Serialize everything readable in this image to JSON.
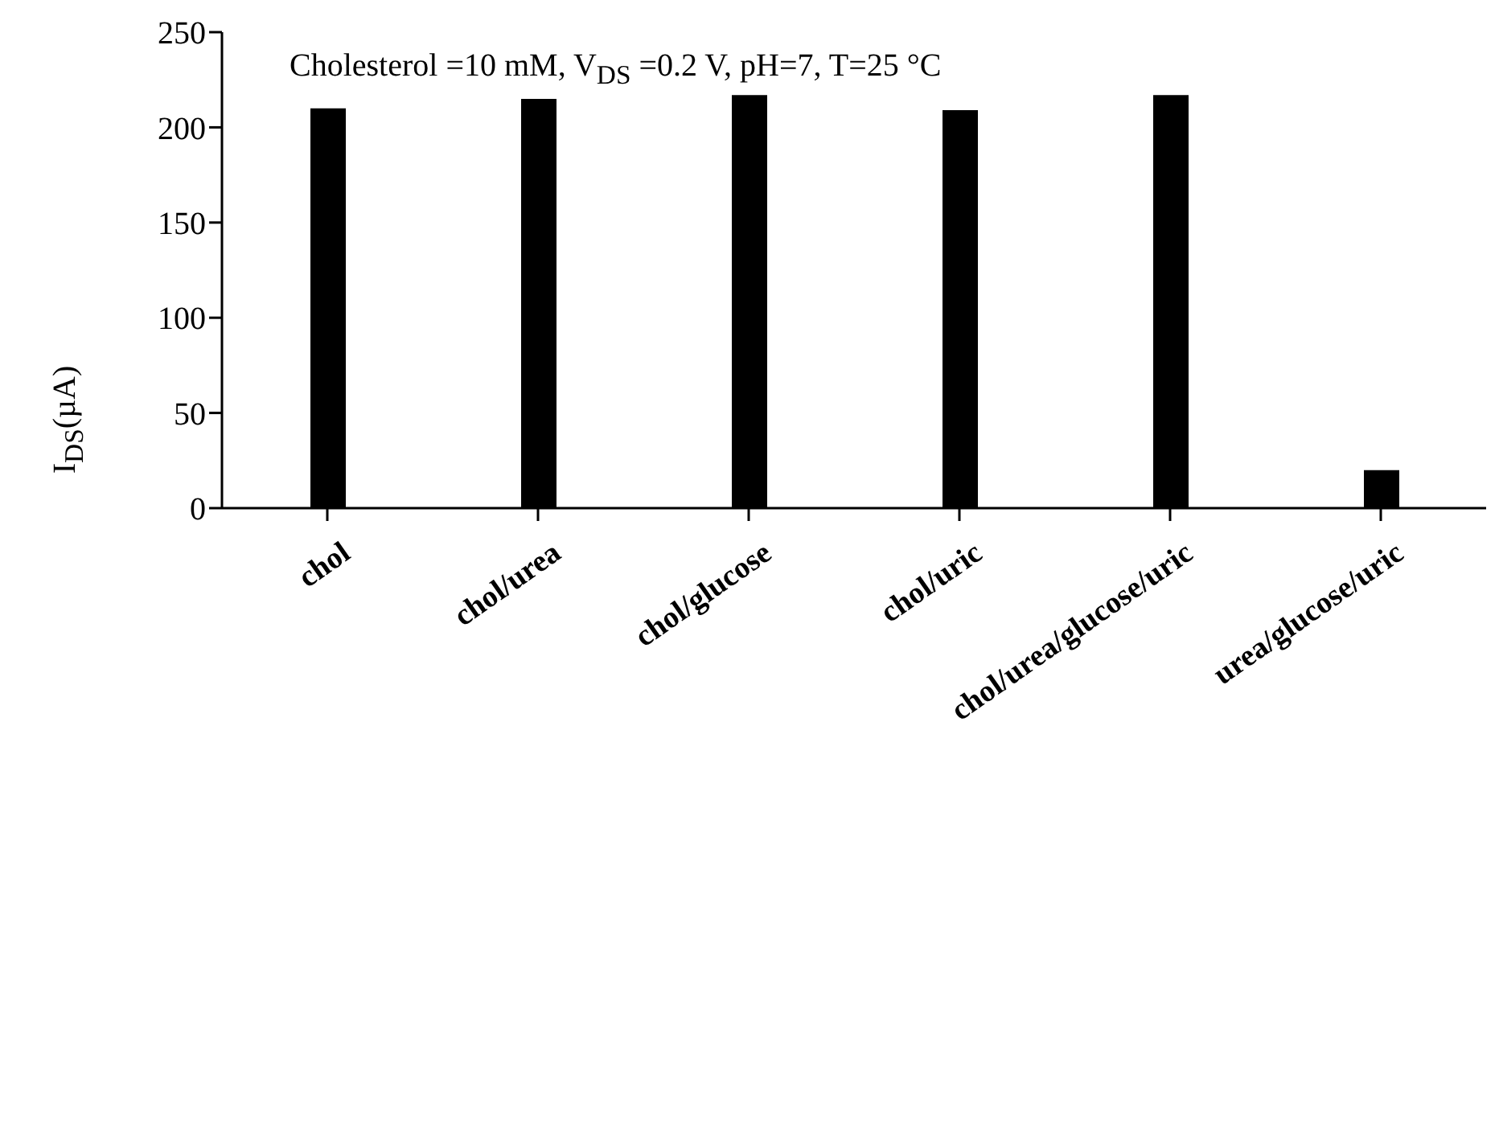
{
  "chart_data": {
    "type": "bar",
    "annotations": [
      "Cholesterol =10 mM, V$_{DS}$ =0.2 V, pH=7, T=25 °C"
    ],
    "ylabel": "I$_{DS}$(µA)",
    "categories": [
      "chol",
      "chol/urea",
      "chol/glucose",
      "chol/uric",
      "chol/urea/glucose/uric",
      "urea/glucose/uric"
    ],
    "values": [
      210,
      215,
      217,
      209,
      217,
      20
    ],
    "color": "#000000",
    "ylim": [
      0,
      250
    ],
    "yticks": [
      0,
      50,
      100,
      150,
      200,
      250
    ],
    "grid": false,
    "legend": false
  }
}
